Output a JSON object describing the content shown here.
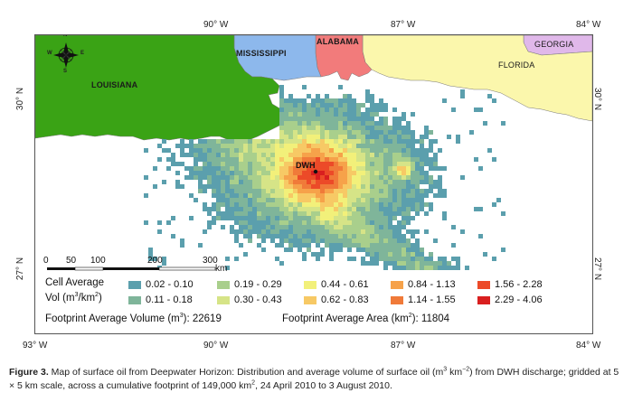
{
  "axes": {
    "top": [
      "90° W",
      "87° W",
      "84° W"
    ],
    "bottom": [
      "93° W",
      "90° W",
      "87° W",
      "84° W"
    ],
    "left": [
      "30° N",
      "27° N"
    ],
    "right": [
      "30° N",
      "27° N"
    ]
  },
  "states": {
    "louisiana": "LOUISIANA",
    "mississippi": "MISSISSIPPI",
    "alabama": "ALABAMA",
    "florida": "FLORIDA",
    "georgia": "GEORGIA"
  },
  "compass": {
    "n": "N",
    "s": "S",
    "e": "E",
    "w": "W"
  },
  "site_label": "DWH",
  "scale": {
    "ticks": [
      "0",
      "50",
      "100",
      "200",
      "300"
    ],
    "unit": "km"
  },
  "legend": {
    "title_cell": "Cell Average",
    "title_vol": "Vol (m",
    "title_vol_sup": "3",
    "title_vol_mid": "/km",
    "title_vol_sup2": "2",
    "title_vol_end": ")",
    "row1": [
      {
        "label": "0.02 - 0.10",
        "color": "#5b9fad"
      },
      {
        "label": "0.19 - 0.29",
        "color": "#a9cf8c"
      },
      {
        "label": "0.44 - 0.61",
        "color": "#f2f07a"
      },
      {
        "label": "0.84 - 1.13",
        "color": "#f6a24a"
      },
      {
        "label": "1.56 - 2.28",
        "color": "#ec4a28"
      }
    ],
    "row2": [
      {
        "label": "0.11 - 0.18",
        "color": "#7fb59a"
      },
      {
        "label": "0.30 - 0.43",
        "color": "#d6e487"
      },
      {
        "label": "0.62 - 0.83",
        "color": "#f7c965"
      },
      {
        "label": "1.14 - 1.55",
        "color": "#f07a39"
      },
      {
        "label": "2.29 - 4.06",
        "color": "#d91f1f"
      }
    ],
    "footprint_volume_a": "Footprint Average Volume (m",
    "footprint_volume_sup": "3",
    "footprint_volume_b": "): 22619",
    "footprint_area_a": "Footprint Average Area (km",
    "footprint_area_sup": "2",
    "footprint_area_b": "): 11804"
  },
  "caption": {
    "fig": "Figure 3.",
    "text_a": " Map of surface oil from Deepwater Horizon: Distribution and average volume of surface oil (m",
    "sup_a": "3",
    "text_b": " km",
    "sup_b": "−2",
    "text_c": ") from DWH discharge; gridded at 5 × 5 km scale, across a cumulative footprint of 149,000 km",
    "sup_c": "2",
    "text_d": ", 24 April 2010 to 3 August 2010."
  },
  "colors": {
    "louisiana": "#3aa315",
    "mississippi": "#8db8ec",
    "alabama": "#f27b7b",
    "florida": "#fbf7ac",
    "georgia": "#e0b8ea",
    "water": "#ffffff"
  }
}
